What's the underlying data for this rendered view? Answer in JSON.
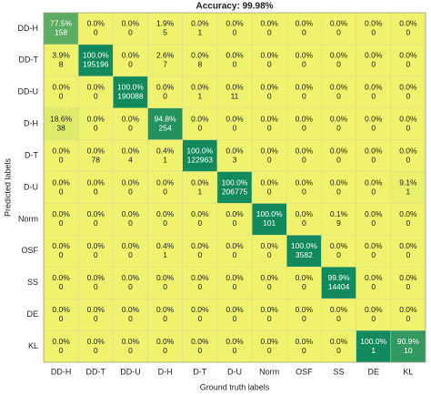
{
  "chart_data": {
    "type": "heatmap",
    "title": "Accuracy: 99.98%",
    "x_label": "Ground truth labels",
    "y_label": "Predicted labels",
    "x_categories": [
      "DD-H",
      "DD-T",
      "DD-U",
      "D-H",
      "D-T",
      "D-U",
      "Norm",
      "OSF",
      "SS",
      "DE",
      "KL"
    ],
    "y_categories": [
      "DD-H",
      "DD-T",
      "DD-U",
      "D-H",
      "D-T",
      "D-U",
      "Norm",
      "OSF",
      "SS",
      "DE",
      "KL"
    ],
    "colors": [
      "#eef26c",
      "#138a5e"
    ],
    "values": [
      [
        77.5,
        0,
        0,
        1.9,
        0,
        0,
        0,
        0,
        0,
        0,
        0
      ],
      [
        3.9,
        100,
        0,
        2.6,
        0,
        0,
        0,
        0,
        0,
        0,
        0
      ],
      [
        0,
        0,
        100,
        0,
        0,
        0,
        0,
        0,
        0,
        0,
        0
      ],
      [
        18.6,
        0,
        0,
        94.8,
        0,
        0,
        0,
        0,
        0,
        0,
        0
      ],
      [
        0,
        0,
        0,
        0.4,
        100,
        0,
        0,
        0,
        0,
        0,
        0
      ],
      [
        0,
        0,
        0,
        0,
        0,
        100,
        0,
        0,
        0,
        0,
        9.1
      ],
      [
        0,
        0,
        0,
        0,
        0,
        0,
        100,
        0,
        0.1,
        0,
        0
      ],
      [
        0,
        0,
        0,
        0.4,
        0,
        0,
        0,
        100,
        0,
        0,
        0
      ],
      [
        0,
        0,
        0,
        0,
        0,
        0,
        0,
        0,
        99.9,
        0,
        0
      ],
      [
        0,
        0,
        0,
        0,
        0,
        0,
        0,
        0,
        0,
        0,
        0
      ],
      [
        0,
        0,
        0,
        0,
        0,
        0,
        0,
        0,
        0,
        100,
        90.9
      ]
    ],
    "value_labels": [
      [
        "77.5%",
        "0.0%",
        "0.0%",
        "1.9%",
        "0.0%",
        "0.0%",
        "0.0%",
        "0.0%",
        "0.0%",
        "0.0%",
        "0.0%"
      ],
      [
        "3.9%",
        "100.0%",
        "0.0%",
        "2.6%",
        "0.0%",
        "0.0%",
        "0.0%",
        "0.0%",
        "0.0%",
        "0.0%",
        "0.0%"
      ],
      [
        "0.0%",
        "0.0%",
        "100.0%",
        "0.0%",
        "0.0%",
        "0.0%",
        "0.0%",
        "0.0%",
        "0.0%",
        "0.0%",
        "0.0%"
      ],
      [
        "18.6%",
        "0.0%",
        "0.0%",
        "94.8%",
        "0.0%",
        "0.0%",
        "0.0%",
        "0.0%",
        "0.0%",
        "0.0%",
        "0.0%"
      ],
      [
        "0.0%",
        "0.0%",
        "0.0%",
        "0.4%",
        "100.0%",
        "0.0%",
        "0.0%",
        "0.0%",
        "0.0%",
        "0.0%",
        "0.0%"
      ],
      [
        "0.0%",
        "0.0%",
        "0.0%",
        "0.0%",
        "0.0%",
        "100.0%",
        "0.0%",
        "0.0%",
        "0.0%",
        "0.0%",
        "9.1%"
      ],
      [
        "0.0%",
        "0.0%",
        "0.0%",
        "0.0%",
        "0.0%",
        "0.0%",
        "100.0%",
        "0.0%",
        "0.1%",
        "0.0%",
        "0.0%"
      ],
      [
        "0.0%",
        "0.0%",
        "0.0%",
        "0.4%",
        "0.0%",
        "0.0%",
        "0.0%",
        "100.0%",
        "0.0%",
        "0.0%",
        "0.0%"
      ],
      [
        "0.0%",
        "0.0%",
        "0.0%",
        "0.0%",
        "0.0%",
        "0.0%",
        "0.0%",
        "0.0%",
        "99.9%",
        "0.0%",
        "0.0%"
      ],
      [
        "0.0%",
        "0.0%",
        "0.0%",
        "0.0%",
        "0.0%",
        "0.0%",
        "0.0%",
        "0.0%",
        "0.0%",
        "0.0%",
        "0.0%"
      ],
      [
        "0.0%",
        "0.0%",
        "0.0%",
        "0.0%",
        "0.0%",
        "0.0%",
        "0.0%",
        "0.0%",
        "0.0%",
        "100.0%",
        "90.9%"
      ]
    ],
    "counts": [
      [
        158,
        0,
        0,
        5,
        1,
        0,
        0,
        0,
        0,
        0,
        0
      ],
      [
        8,
        195196,
        0,
        7,
        8,
        0,
        0,
        0,
        0,
        0,
        0
      ],
      [
        0,
        0,
        190088,
        0,
        1,
        11,
        0,
        0,
        0,
        0,
        0
      ],
      [
        38,
        0,
        0,
        254,
        0,
        0,
        0,
        0,
        0,
        0,
        0
      ],
      [
        0,
        78,
        4,
        1,
        122963,
        3,
        0,
        0,
        0,
        0,
        0
      ],
      [
        0,
        0,
        0,
        0,
        1,
        206775,
        0,
        0,
        0,
        0,
        1
      ],
      [
        0,
        0,
        0,
        0,
        0,
        0,
        101,
        0,
        9,
        0,
        0
      ],
      [
        0,
        0,
        0,
        1,
        0,
        0,
        0,
        3582,
        0,
        0,
        0
      ],
      [
        0,
        0,
        0,
        0,
        0,
        0,
        0,
        0,
        14404,
        0,
        0
      ],
      [
        0,
        0,
        0,
        0,
        0,
        0,
        0,
        0,
        0,
        0,
        0
      ],
      [
        0,
        0,
        0,
        0,
        0,
        0,
        0,
        0,
        0,
        1,
        10
      ]
    ]
  }
}
